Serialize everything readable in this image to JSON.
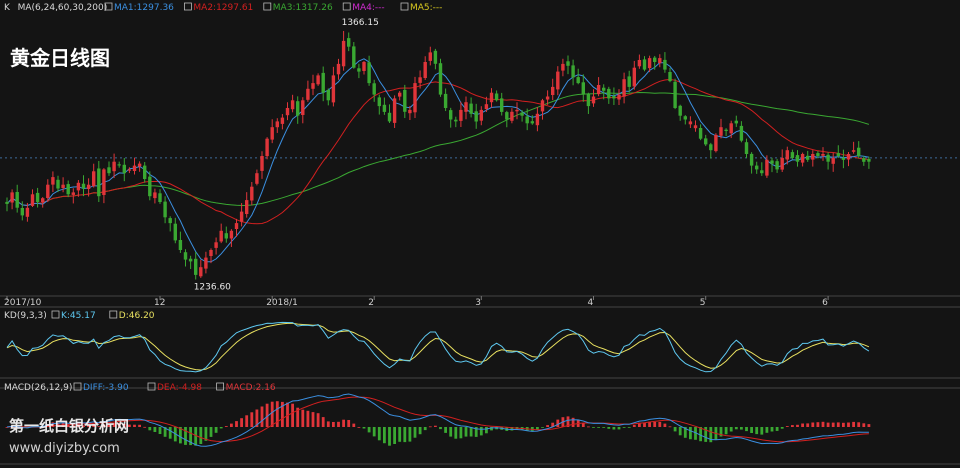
{
  "title": "黄金日线图",
  "watermark": {
    "name": "第一纸白银分析网",
    "url": "www.diyizby.com"
  },
  "colors": {
    "up": "#e0353a",
    "down": "#3aa832",
    "ma1": "#3b8fe0",
    "ma2": "#d22020",
    "ma3": "#3aa832",
    "ma4": "#d02bd0",
    "ma5": "#d8c820",
    "k": "#5ec8f0",
    "d": "#e8e060",
    "diff": "#3b8fe0",
    "dea": "#d22020",
    "macd_pos": "#e0353a",
    "macd_neg": "#3aa832",
    "grid": "#3a3a3a"
  },
  "main_legend": {
    "k_label": "K",
    "ma_params": "MA(6,24,60,30,200)",
    "items": [
      {
        "key": "ma1",
        "text": "MA1:1297.36"
      },
      {
        "key": "ma2",
        "text": "MA2:1297.61"
      },
      {
        "key": "ma3",
        "text": "MA3:1317.26"
      },
      {
        "key": "ma4",
        "text": "MA4:---"
      },
      {
        "key": "ma5",
        "text": "MA5:---"
      }
    ]
  },
  "kd_legend": {
    "params": "KD(9,3,3)",
    "items": [
      {
        "key": "k",
        "text": "K:45.17"
      },
      {
        "key": "d",
        "text": "D:46.20"
      }
    ]
  },
  "macd_legend": {
    "params": "MACD(26,12,9)",
    "items": [
      {
        "key": "diff",
        "text": "DIFF:-3.90"
      },
      {
        "key": "dea",
        "text": "DEA:-4.98"
      },
      {
        "key": "macd_pos",
        "text": "MACD:2.16"
      }
    ]
  },
  "chart_data": {
    "type": "candlestick",
    "title": "黄金日线图",
    "x_tick_labels": [
      "2017/10",
      "12",
      "2018/1",
      "2",
      "3",
      "4",
      "5",
      "6"
    ],
    "x_tick_index": [
      0,
      30,
      52,
      72,
      93,
      115,
      137,
      161
    ],
    "ylim": [
      1228,
      1375
    ],
    "annotations": [
      {
        "text": "1366.15",
        "type": "high",
        "index": 66,
        "price": 1366.15
      },
      {
        "text": "1236.60",
        "type": "low",
        "index": 37,
        "price": 1236.6
      }
    ],
    "reference_line": 1300,
    "close_prices": [
      1276,
      1282,
      1274,
      1270,
      1274,
      1281,
      1277,
      1279,
      1286,
      1290,
      1284,
      1286,
      1281,
      1282,
      1287,
      1284,
      1286,
      1293,
      1280,
      1294,
      1292,
      1298,
      1296,
      1292,
      1294,
      1296,
      1297,
      1289,
      1280,
      1282,
      1277,
      1269,
      1266,
      1257,
      1252,
      1247,
      1246,
      1239,
      1243,
      1248,
      1252,
      1256,
      1262,
      1258,
      1262,
      1266,
      1272,
      1278,
      1285,
      1292,
      1301,
      1310,
      1316,
      1319,
      1321,
      1326,
      1330,
      1322,
      1330,
      1336,
      1339,
      1343,
      1334,
      1330,
      1343,
      1349,
      1361,
      1358,
      1347,
      1345,
      1350,
      1339,
      1333,
      1327,
      1324,
      1319,
      1331,
      1334,
      1324,
      1325,
      1339,
      1342,
      1350,
      1355,
      1349,
      1333,
      1326,
      1320,
      1319,
      1325,
      1329,
      1323,
      1319,
      1325,
      1328,
      1334,
      1330,
      1324,
      1320,
      1324,
      1325,
      1322,
      1318,
      1318,
      1323,
      1330,
      1332,
      1337,
      1345,
      1349,
      1348,
      1342,
      1339,
      1333,
      1327,
      1332,
      1338,
      1335,
      1331,
      1331,
      1333,
      1341,
      1337,
      1347,
      1351,
      1346,
      1352,
      1350,
      1352,
      1346,
      1340,
      1326,
      1322,
      1320,
      1319,
      1317,
      1310,
      1307,
      1304,
      1312,
      1316,
      1314,
      1318,
      1318,
      1309,
      1302,
      1296,
      1294,
      1292,
      1299,
      1297,
      1294,
      1300,
      1304,
      1300,
      1298,
      1302,
      1299,
      1302,
      1301,
      1302,
      1298,
      1300,
      1301,
      1299,
      1302,
      1304,
      1301,
      1298,
      1298
    ]
  }
}
